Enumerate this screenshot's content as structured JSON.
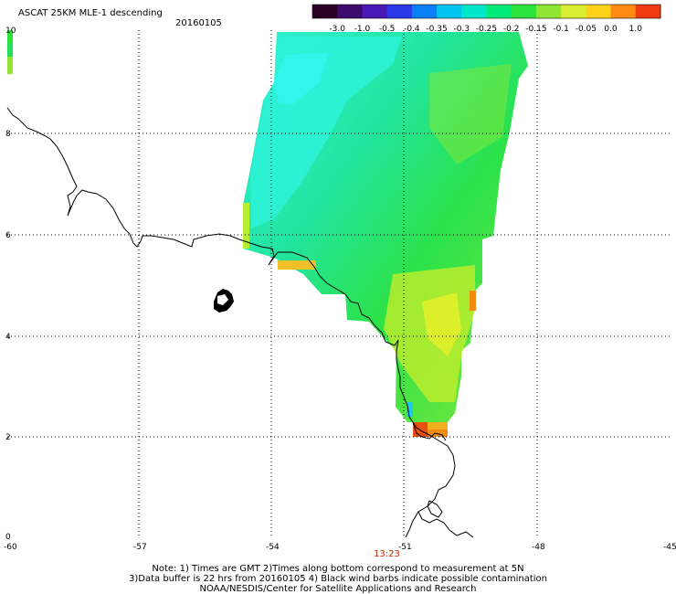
{
  "title": "ASCAT 25KM MLE-1 descending",
  "date": "20160105",
  "pass_time": "13:23",
  "colorbar": {
    "labels": [
      "-3.0",
      "-1.0",
      "-0.5",
      "-0.4",
      "-0.35",
      "-0.3",
      "-0.25",
      "-0.2",
      "-0.15",
      "-0.1",
      "-0.05",
      "0.0",
      "1.0"
    ],
    "colors": [
      "#2a0026",
      "#3d0a6e",
      "#4a18b5",
      "#2a39e8",
      "#0a7ef5",
      "#00c3f2",
      "#00e6c8",
      "#00ea7a",
      "#2be33a",
      "#8ee632",
      "#d8ee32",
      "#ffd21a",
      "#ff8a12",
      "#f03a12"
    ]
  },
  "map": {
    "lon_range": [
      -60,
      -45
    ],
    "lat_range": [
      0,
      10
    ],
    "x_ticks": [
      "-60",
      "-57",
      "-54",
      "-51",
      "-48",
      "-45"
    ],
    "y_ticks": [
      "0",
      "2",
      "4",
      "6",
      "8",
      "10"
    ],
    "grid": "dotted"
  },
  "notes": {
    "line1": "Note: 1) Times are GMT 2)Times along bottom correspond to measurement at 5N",
    "line2": "3)Data buffer is 22 hrs from 20160105 4) Black wind barbs indicate possible contamination",
    "line3": "NOAA/NESDIS/Center for Satellite Applications and Research"
  },
  "legend_colors": {
    "cyan": "#2ef2d8",
    "green": "#22e05a",
    "yellow_green": "#c8ee2a",
    "yellow": "#f0f020",
    "orange": "#f08a10"
  }
}
